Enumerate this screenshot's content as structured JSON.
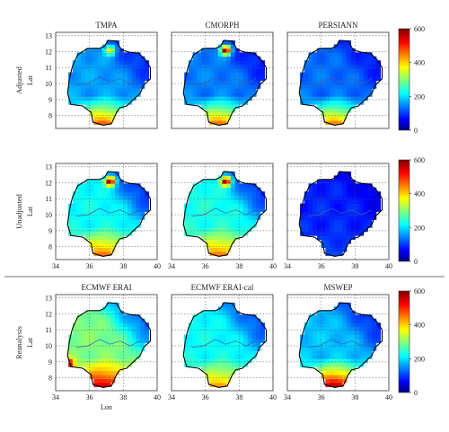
{
  "figure": {
    "rows": [
      {
        "label": "Adjusted",
        "panels": [
          "TMPA",
          "CMORPH",
          "PERSIANN"
        ]
      },
      {
        "label": "Unadjusted",
        "panels": [
          "",
          "",
          ""
        ]
      },
      {
        "label": "Reanalysis",
        "panels": [
          "ECMWF ERAI",
          "ECMWF ERAI-cal",
          "MSWEP"
        ]
      }
    ],
    "ylabel": "Lat",
    "xlabel": "Lon",
    "colorbar": {
      "ticks": [
        "600",
        "400",
        "200",
        "0"
      ]
    },
    "xticks": [
      "34",
      "36",
      "38",
      "40"
    ],
    "yticks": [
      "13",
      "12",
      "11",
      "10",
      "9",
      "8"
    ]
  },
  "chart_data": [
    {
      "type": "heatmap",
      "title": "TMPA",
      "row": "Adjusted",
      "xlabel": "",
      "ylabel": "Lat",
      "xlim": [
        34,
        40
      ],
      "ylim": [
        7.2,
        13.2
      ],
      "clim": [
        0,
        600
      ],
      "colormap": "jet",
      "grid": true,
      "pattern": {
        "base": 170,
        "south_max": 480,
        "ne_min": 90,
        "hotspot": {
          "lon": 37.2,
          "lat": 12.1,
          "value": 380
        }
      }
    },
    {
      "type": "heatmap",
      "title": "CMORPH",
      "row": "Adjusted",
      "xlabel": "",
      "ylabel": "",
      "xlim": [
        34,
        40
      ],
      "ylim": [
        7.2,
        13.2
      ],
      "clim": [
        0,
        600
      ],
      "colormap": "jet",
      "grid": true,
      "pattern": {
        "base": 150,
        "south_max": 470,
        "ne_min": 80,
        "hotspot": {
          "lon": 37.2,
          "lat": 12.1,
          "value": 600
        }
      }
    },
    {
      "type": "heatmap",
      "title": "PERSIANN",
      "row": "Adjusted",
      "xlabel": "",
      "ylabel": "",
      "xlim": [
        34,
        40
      ],
      "ylim": [
        7.2,
        13.2
      ],
      "clim": [
        0,
        600
      ],
      "colormap": "jet",
      "grid": true,
      "pattern": {
        "base": 140,
        "south_max": 460,
        "ne_min": 80,
        "hotspot": null
      }
    },
    {
      "type": "heatmap",
      "title": "",
      "row": "Unadjusted",
      "xlabel": "",
      "ylabel": "Lat",
      "xlim": [
        34,
        40
      ],
      "ylim": [
        7.2,
        13.2
      ],
      "clim": [
        0,
        600
      ],
      "colormap": "jet",
      "grid": true,
      "pattern": {
        "base": 230,
        "south_max": 470,
        "ne_min": 90,
        "hotspot": {
          "lon": 37.2,
          "lat": 12.1,
          "value": 600
        }
      }
    },
    {
      "type": "heatmap",
      "title": "",
      "row": "Unadjusted",
      "xlabel": "",
      "ylabel": "",
      "xlim": [
        34,
        40
      ],
      "ylim": [
        7.2,
        13.2
      ],
      "clim": [
        0,
        600
      ],
      "colormap": "jet",
      "grid": true,
      "pattern": {
        "base": 240,
        "south_max": 460,
        "ne_min": 90,
        "hotspot": {
          "lon": 37.2,
          "lat": 12.1,
          "value": 600
        }
      }
    },
    {
      "type": "heatmap",
      "title": "",
      "row": "Unadjusted",
      "xlabel": "Lon",
      "ylabel": "",
      "xlim": [
        34,
        40
      ],
      "ylim": [
        7.2,
        13.2
      ],
      "clim": [
        0,
        600
      ],
      "colormap": "jet",
      "grid": true,
      "pattern": {
        "base": 95,
        "south_max": 120,
        "ne_min": 60,
        "hotspot": null
      }
    },
    {
      "type": "heatmap",
      "title": "ECMWF ERAI",
      "row": "Reanalysis",
      "xlabel": "Lon",
      "ylabel": "Lat",
      "xlim": [
        34,
        40
      ],
      "ylim": [
        7.2,
        13.2
      ],
      "clim": [
        0,
        600
      ],
      "colormap": "jet",
      "grid": true,
      "pattern": {
        "base": 300,
        "south_max": 560,
        "ne_min": 120,
        "hotspot": {
          "lon": 34.8,
          "lat": 8.9,
          "value": 560
        }
      }
    },
    {
      "type": "heatmap",
      "title": "ECMWF ERAI-cal",
      "row": "Reanalysis",
      "xlabel": "",
      "ylabel": "",
      "xlim": [
        34,
        40
      ],
      "ylim": [
        7.2,
        13.2
      ],
      "clim": [
        0,
        600
      ],
      "colormap": "jet",
      "grid": true,
      "pattern": {
        "base": 230,
        "south_max": 440,
        "ne_min": 110,
        "hotspot": null
      }
    },
    {
      "type": "heatmap",
      "title": "MSWEP",
      "row": "Reanalysis",
      "xlabel": "",
      "ylabel": "",
      "xlim": [
        34,
        40
      ],
      "ylim": [
        7.2,
        13.2
      ],
      "clim": [
        0,
        600
      ],
      "colormap": "jet",
      "grid": true,
      "pattern": {
        "base": 190,
        "south_max": 580,
        "ne_min": 90,
        "hotspot": null
      }
    }
  ]
}
